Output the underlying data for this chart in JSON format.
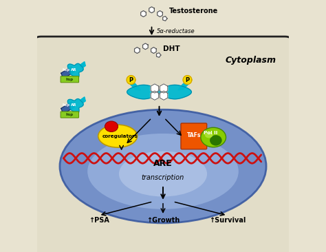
{
  "bg_color": "#e8e3d0",
  "cell_color": "#e2ddc8",
  "cytoplasm_text": "Cytoplasm",
  "testosterone_text": "Testosterone",
  "reductase_text": "5α-reductase",
  "dht_text": "DHT",
  "are_text": "ARE",
  "transcription_text": "transcription",
  "coregulators_text": "coregulators",
  "tafs_text": "TAFs",
  "polii_text": "Pol II",
  "psa_text": "↑PSA",
  "growth_text": "↑Growth",
  "survival_text": "↑Survival",
  "p_text": "P",
  "ar_text": "AR",
  "hsp_text": "hsp",
  "figsize": [
    4.74,
    3.66
  ],
  "dpi": 100
}
